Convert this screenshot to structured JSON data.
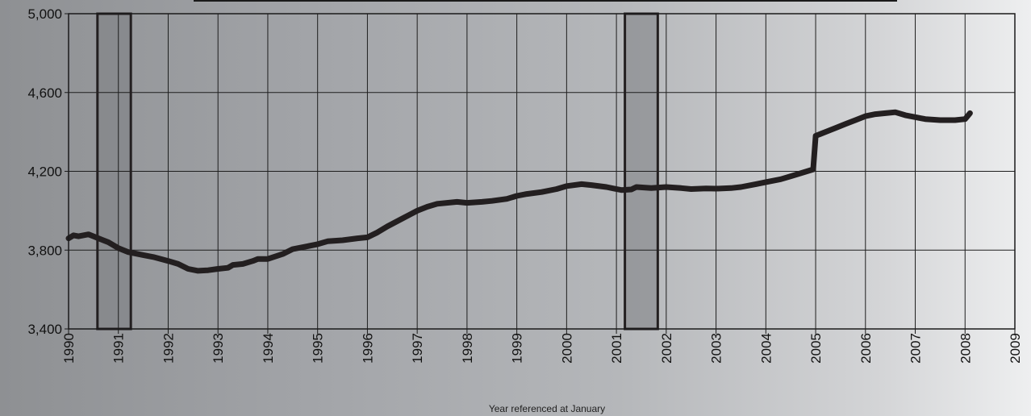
{
  "chart_data": {
    "type": "line",
    "title": "",
    "xlabel": "Year referenced at January",
    "ylabel": "",
    "xlim": [
      1990,
      2009
    ],
    "ylim": [
      3400,
      5000
    ],
    "y_ticks": [
      "3,400",
      "3,800",
      "4,200",
      "4,600",
      "5,000"
    ],
    "y_tick_values": [
      3400,
      3800,
      4200,
      4600,
      5000
    ],
    "x_ticks": [
      "1990",
      "1991",
      "1992",
      "1993",
      "1994",
      "1995",
      "1996",
      "1997",
      "1998",
      "1999",
      "2000",
      "2001",
      "2002",
      "2003",
      "2004",
      "2005",
      "2006",
      "2007",
      "2008",
      "2009"
    ],
    "grid": true,
    "shaded_periods": [
      {
        "start": 1990.58,
        "end": 1991.25
      },
      {
        "start": 2001.17,
        "end": 2001.83
      }
    ],
    "series": [
      {
        "name": "",
        "color": "#231f20",
        "x": [
          1990.0,
          1990.1,
          1990.2,
          1990.4,
          1990.5,
          1990.6,
          1990.8,
          1991.0,
          1991.2,
          1991.5,
          1991.7,
          1992.0,
          1992.2,
          1992.4,
          1992.6,
          1992.8,
          1993.0,
          1993.2,
          1993.3,
          1993.5,
          1993.7,
          1993.8,
          1994.0,
          1994.3,
          1994.5,
          1994.8,
          1995.0,
          1995.2,
          1995.5,
          1995.8,
          1996.0,
          1996.2,
          1996.4,
          1996.7,
          1997.0,
          1997.2,
          1997.4,
          1997.8,
          1998.0,
          1998.3,
          1998.5,
          1998.8,
          1999.0,
          1999.2,
          1999.5,
          1999.8,
          2000.0,
          2000.3,
          2000.5,
          2000.8,
          2001.0,
          2001.1,
          2001.3,
          2001.4,
          2001.7,
          2002.0,
          2002.3,
          2002.5,
          2002.8,
          2003.0,
          2003.3,
          2003.5,
          2003.8,
          2004.0,
          2004.3,
          2004.5,
          2004.7,
          2004.95,
          2005.0,
          2005.2,
          2005.4,
          2005.6,
          2005.8,
          2006.0,
          2006.2,
          2006.4,
          2006.6,
          2006.8,
          2007.0,
          2007.2,
          2007.5,
          2007.8,
          2008.0,
          2008.1
        ],
        "y": [
          3860,
          3875,
          3870,
          3880,
          3870,
          3860,
          3840,
          3810,
          3790,
          3775,
          3765,
          3745,
          3730,
          3705,
          3695,
          3698,
          3705,
          3710,
          3725,
          3730,
          3745,
          3755,
          3755,
          3780,
          3805,
          3820,
          3830,
          3845,
          3850,
          3860,
          3865,
          3890,
          3920,
          3960,
          4000,
          4020,
          4035,
          4045,
          4040,
          4045,
          4050,
          4060,
          4075,
          4085,
          4095,
          4110,
          4125,
          4135,
          4130,
          4120,
          4110,
          4105,
          4108,
          4120,
          4115,
          4120,
          4115,
          4110,
          4113,
          4112,
          4115,
          4120,
          4135,
          4145,
          4160,
          4175,
          4190,
          4210,
          4380,
          4400,
          4420,
          4440,
          4460,
          4480,
          4490,
          4495,
          4500,
          4485,
          4475,
          4465,
          4460,
          4460,
          4465,
          4495
        ]
      }
    ]
  }
}
